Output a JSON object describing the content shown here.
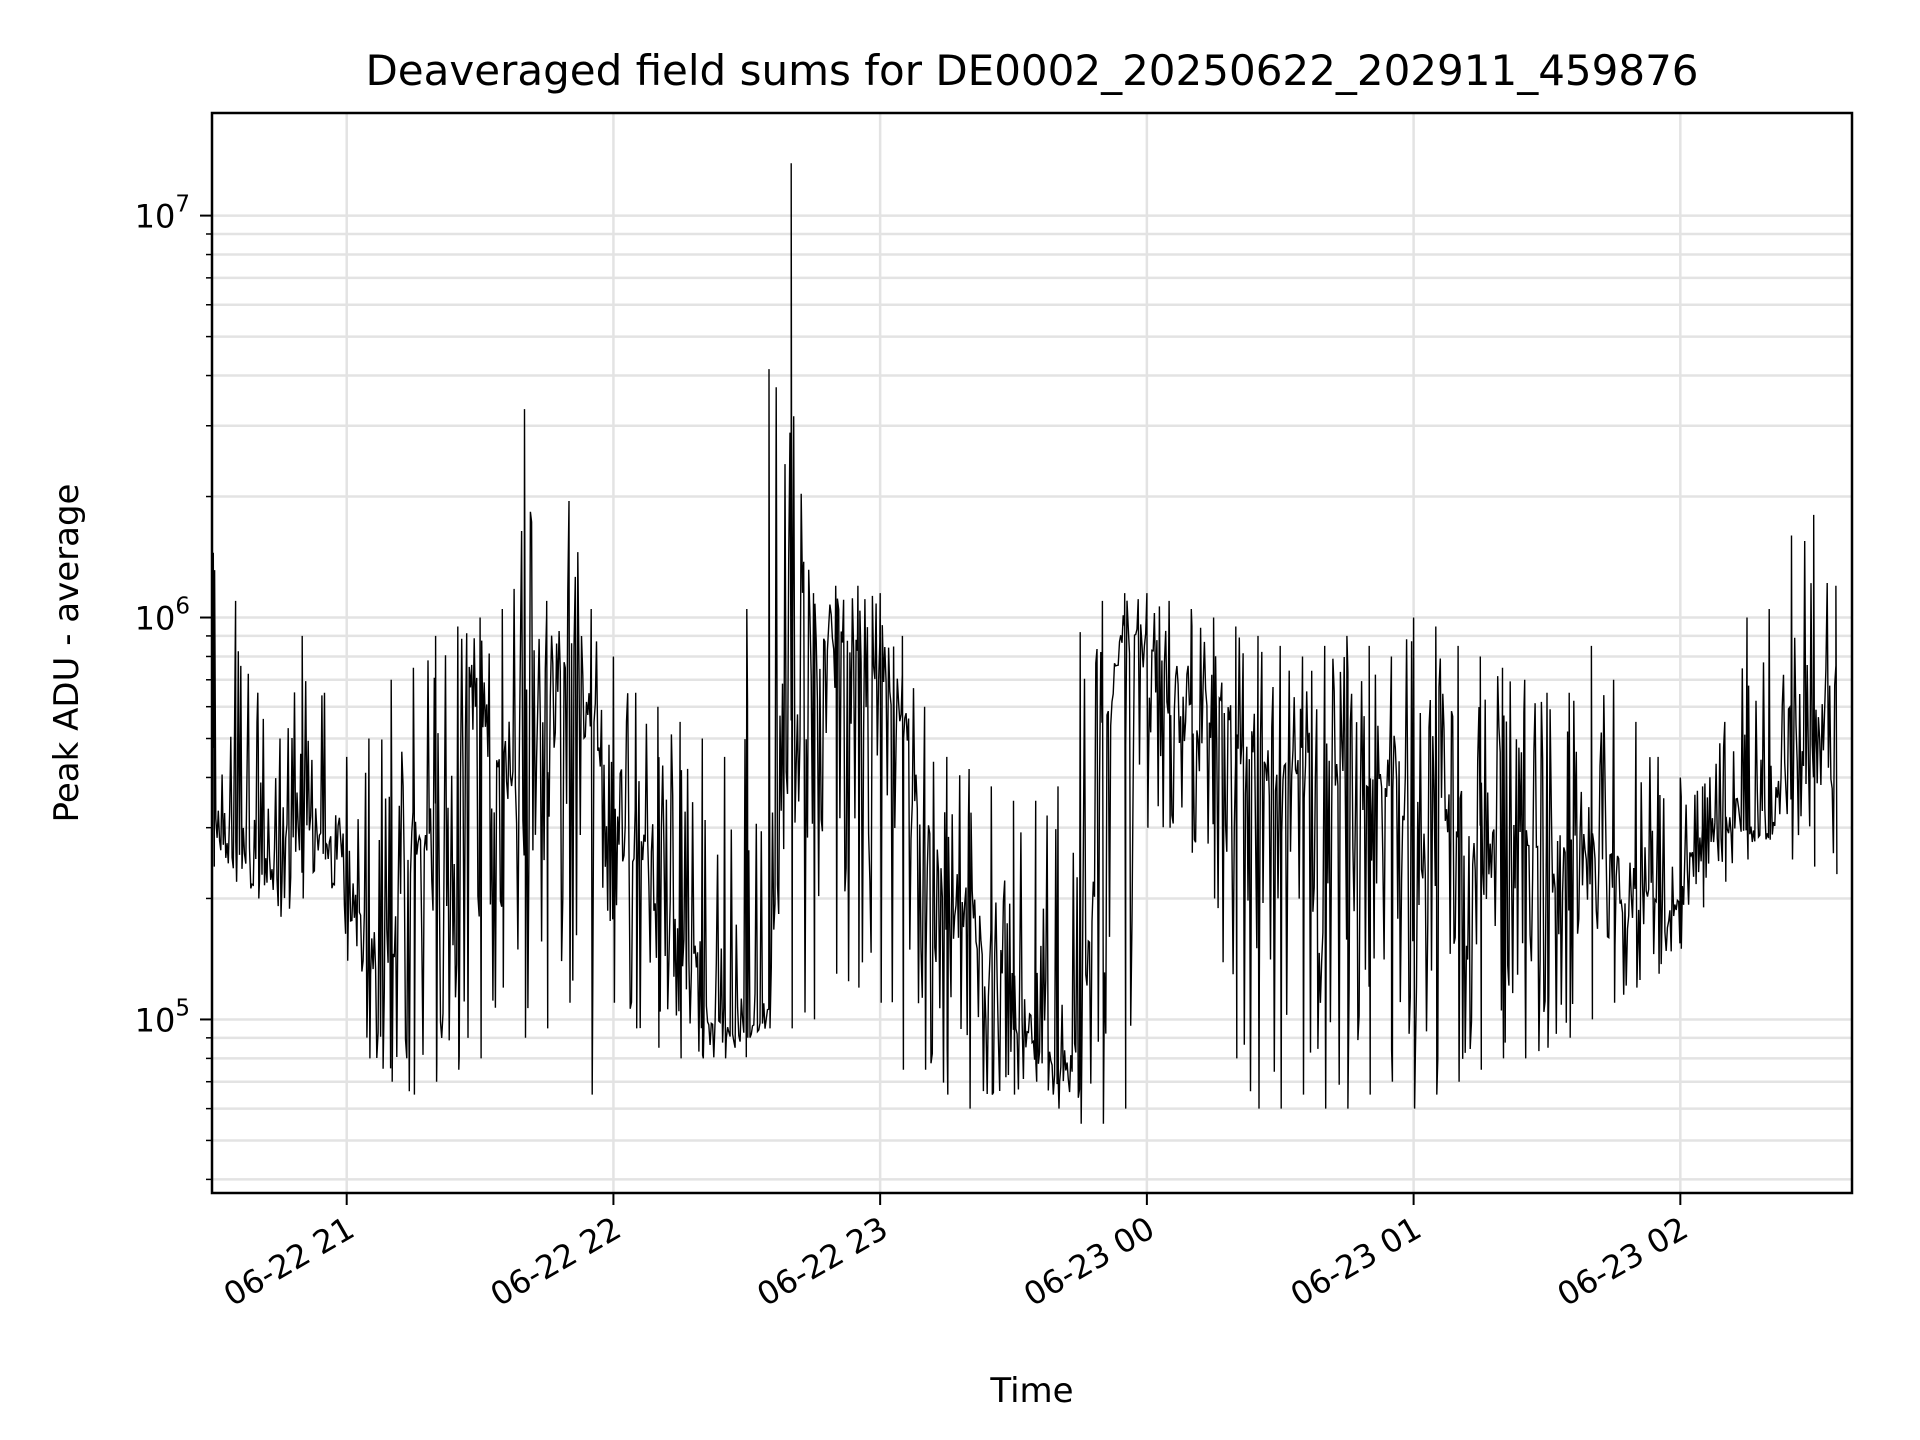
{
  "chart_data": {
    "type": "line",
    "title": "Deaveraged field sums for DE0002_20250622_202911_459876",
    "xlabel": "Time",
    "ylabel": "Peak ADU - average",
    "yscale": "log",
    "ylim": [
      37000,
      18000000
    ],
    "xlim": [
      "06-22 20:29:42",
      "06-23 02:38:37"
    ],
    "grid": true,
    "x_ticks": [
      {
        "value": "06-22 21:00",
        "label": "06-22 21"
      },
      {
        "value": "06-22 22:00",
        "label": "06-22 22"
      },
      {
        "value": "06-22 23:00",
        "label": "06-22 23"
      },
      {
        "value": "06-23 00:00",
        "label": "06-23 00"
      },
      {
        "value": "06-23 01:00",
        "label": "06-23 01"
      },
      {
        "value": "06-23 02:00",
        "label": "06-23 02"
      }
    ],
    "y_ticks": [
      {
        "value": 100000,
        "base": "10",
        "exp": "5"
      },
      {
        "value": 1000000,
        "base": "10",
        "exp": "6"
      },
      {
        "value": 10000000,
        "base": "10",
        "exp": "7"
      }
    ],
    "series": [
      {
        "color": "#000000",
        "x": [
          "06-22 20:30",
          "06-22 20:35",
          "06-22 20:40",
          "06-22 20:45",
          "06-22 20:50",
          "06-22 20:55",
          "06-22 21:00",
          "06-22 21:05",
          "06-22 21:10",
          "06-22 21:15",
          "06-22 21:20",
          "06-22 21:25",
          "06-22 21:30",
          "06-22 21:35",
          "06-22 21:40",
          "06-22 21:45",
          "06-22 21:50",
          "06-22 21:55",
          "06-22 22:00",
          "06-22 22:05",
          "06-22 22:10",
          "06-22 22:15",
          "06-22 22:20",
          "06-22 22:25",
          "06-22 22:30",
          "06-22 22:35",
          "06-22 22:40",
          "06-22 22:45",
          "06-22 22:50",
          "06-22 22:55",
          "06-22 23:00",
          "06-22 23:05",
          "06-22 23:10",
          "06-22 23:15",
          "06-22 23:20",
          "06-22 23:25",
          "06-22 23:30",
          "06-22 23:35",
          "06-22 23:40",
          "06-22 23:45",
          "06-22 23:50",
          "06-22 23:55",
          "06-23 00:00",
          "06-23 00:05",
          "06-23 00:10",
          "06-23 00:15",
          "06-23 00:20",
          "06-23 00:25",
          "06-23 00:30",
          "06-23 00:35",
          "06-23 00:40",
          "06-23 00:45",
          "06-23 00:50",
          "06-23 00:55",
          "06-23 01:00",
          "06-23 01:05",
          "06-23 01:10",
          "06-23 01:15",
          "06-23 01:20",
          "06-23 01:25",
          "06-23 01:30",
          "06-23 01:35",
          "06-23 01:40",
          "06-23 01:45",
          "06-23 01:50",
          "06-23 01:55",
          "06-23 02:00",
          "06-23 02:05",
          "06-23 02:10",
          "06-23 02:15",
          "06-23 02:20",
          "06-23 02:25",
          "06-23 02:30",
          "06-23 02:35"
        ],
        "y": [
          300000,
          280000,
          250000,
          230000,
          330000,
          300000,
          200000,
          150000,
          140000,
          300000,
          250000,
          450000,
          550000,
          450000,
          300000,
          700000,
          850000,
          500000,
          300000,
          260000,
          250000,
          200000,
          110000,
          100000,
          95000,
          110000,
          500000,
          700000,
          900000,
          850000,
          800000,
          500000,
          300000,
          200000,
          180000,
          150000,
          110000,
          90000,
          80000,
          75000,
          450000,
          850000,
          900000,
          800000,
          600000,
          550000,
          500000,
          450000,
          380000,
          420000,
          400000,
          300000,
          350000,
          380000,
          320000,
          350000,
          300000,
          270000,
          260000,
          250000,
          240000,
          230000,
          300000,
          240000,
          200000,
          190000,
          210000,
          260000,
          320000,
          310000,
          330000,
          360000,
          450000,
          650000
        ],
        "min": [
          240000,
          220000,
          200000,
          180000,
          200000,
          250000,
          140000,
          80000,
          70000,
          65000,
          70000,
          75000,
          80000,
          120000,
          90000,
          95000,
          110000,
          65000,
          110000,
          95000,
          85000,
          80000,
          80000,
          80000,
          90000,
          95000,
          95000,
          100000,
          130000,
          120000,
          110000,
          75000,
          75000,
          65000,
          60000,
          65000,
          65000,
          70000,
          60000,
          55000,
          55000,
          60000,
          300000,
          300000,
          260000,
          200000,
          80000,
          60000,
          60000,
          65000,
          60000,
          60000,
          65000,
          70000,
          60000,
          65000,
          70000,
          75000,
          80000,
          80000,
          85000,
          90000,
          100000,
          110000,
          120000,
          130000,
          150000,
          190000,
          220000,
          250000,
          280000,
          250000,
          240000,
          230000
        ],
        "max": [
          1450000,
          1100000,
          650000,
          500000,
          900000,
          650000,
          450000,
          500000,
          700000,
          750000,
          900000,
          950000,
          1000000,
          1050000,
          3300000,
          1100000,
          1950000,
          1050000,
          800000,
          650000,
          600000,
          550000,
          500000,
          450000,
          1050000,
          4150000,
          13500000,
          1150000,
          1200000,
          1200000,
          1150000,
          900000,
          600000,
          450000,
          420000,
          380000,
          350000,
          350000,
          380000,
          920000,
          1100000,
          1150000,
          1150000,
          1100000,
          1050000,
          1000000,
          950000,
          900000,
          850000,
          800000,
          850000,
          900000,
          850000,
          800000,
          1000000,
          950000,
          850000,
          800000,
          750000,
          700000,
          650000,
          650000,
          850000,
          700000,
          550000,
          450000,
          400000,
          380000,
          550000,
          1000000,
          1050000,
          1600000,
          1800000,
          1200000
        ]
      }
    ]
  }
}
